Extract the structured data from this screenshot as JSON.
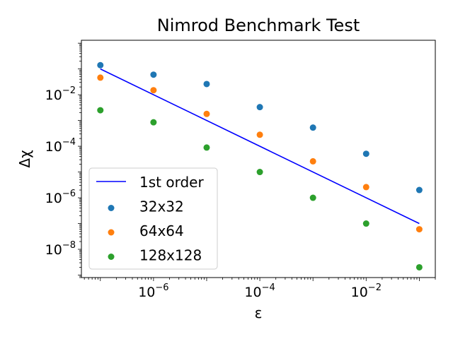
{
  "chart_data": {
    "type": "scatter",
    "title": "Nimrod Benchmark Test",
    "xlabel": "ε",
    "ylabel": "Δχ",
    "xscale": "log",
    "yscale": "log",
    "xlim": [
      4.4e-08,
      0.2
    ],
    "ylim": [
      8e-10,
      1.3
    ],
    "x_ticks": [
      {
        "value": 1e-06,
        "base": "10",
        "exp": "−6"
      },
      {
        "value": 0.0001,
        "base": "10",
        "exp": "−4"
      },
      {
        "value": 0.01,
        "base": "10",
        "exp": "−2"
      }
    ],
    "y_ticks": [
      {
        "value": 1e-08,
        "base": "10",
        "exp": "−8"
      },
      {
        "value": 1e-06,
        "base": "10",
        "exp": "−6"
      },
      {
        "value": 0.0001,
        "base": "10",
        "exp": "−4"
      },
      {
        "value": 0.01,
        "base": "10",
        "exp": "−2"
      }
    ],
    "x": [
      1e-07,
      1e-06,
      1e-05,
      0.0001,
      0.001,
      0.01,
      0.1
    ],
    "reference_line": {
      "name": "1st order",
      "color": "#0000ff",
      "x": [
        1e-07,
        0.1
      ],
      "y": [
        0.1,
        1e-07
      ]
    },
    "series": [
      {
        "name": "32x32",
        "color": "#1f77b4",
        "values": [
          0.14,
          0.06,
          0.026,
          0.0033,
          0.00053,
          5.1e-05,
          2e-06
        ]
      },
      {
        "name": "64x64",
        "color": "#ff7f0e",
        "values": [
          0.046,
          0.015,
          0.0018,
          0.00028,
          2.6e-05,
          2.6e-06,
          6e-08
        ]
      },
      {
        "name": "128x128",
        "color": "#2ca02c",
        "values": [
          0.0025,
          0.00085,
          8.9e-05,
          1e-05,
          1e-06,
          1e-07,
          2e-09
        ]
      }
    ],
    "grid": false,
    "legend_position": "lower-left"
  }
}
